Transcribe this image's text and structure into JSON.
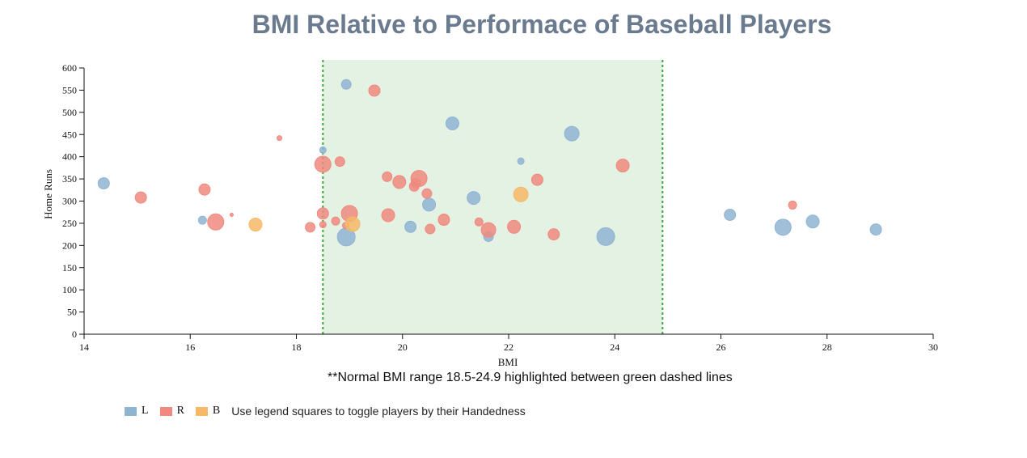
{
  "title": "BMI Relative to Performace of Baseball Players",
  "note": "**Normal BMI range 18.5-24.9 highlighted between green dashed lines",
  "legend": {
    "items": [
      {
        "label": "L",
        "color": "#8fb4d2"
      },
      {
        "label": "R",
        "color": "#f0897f"
      },
      {
        "label": "B",
        "color": "#f6b967"
      }
    ],
    "hint": "Use legend squares to toggle players by their Handedness"
  },
  "chart_data": {
    "type": "scatter",
    "xlabel": "BMI",
    "ylabel": "Home Runs",
    "xlim": [
      14,
      30
    ],
    "ylim": [
      0,
      600
    ],
    "x_ticks": [
      "14",
      "16",
      "18",
      "20",
      "22",
      "24",
      "26",
      "28",
      "30"
    ],
    "y_ticks": [
      "0",
      "50",
      "100",
      "150",
      "200",
      "250",
      "300",
      "350",
      "400",
      "450",
      "500",
      "550",
      "600"
    ],
    "highlight_range": [
      18.5,
      24.9
    ],
    "highlight_color": "#e4f2e4",
    "highlight_line_color": "#3aa63a",
    "colors": {
      "L": "#8fb4d2",
      "R": "#f0897f",
      "B": "#f6b967"
    },
    "series": [
      {
        "name": "L",
        "points": [
          {
            "x": 14.37,
            "y": 340,
            "size": 7
          },
          {
            "x": 16.23,
            "y": 257,
            "size": 5
          },
          {
            "x": 18.5,
            "y": 415,
            "size": 4
          },
          {
            "x": 18.94,
            "y": 563,
            "size": 6
          },
          {
            "x": 18.94,
            "y": 219,
            "size": 11
          },
          {
            "x": 20.15,
            "y": 242,
            "size": 7
          },
          {
            "x": 20.5,
            "y": 292,
            "size": 8
          },
          {
            "x": 20.94,
            "y": 475,
            "size": 8
          },
          {
            "x": 21.34,
            "y": 307,
            "size": 8
          },
          {
            "x": 21.62,
            "y": 220,
            "size": 6
          },
          {
            "x": 22.23,
            "y": 390,
            "size": 4
          },
          {
            "x": 23.19,
            "y": 452,
            "size": 9
          },
          {
            "x": 23.83,
            "y": 220,
            "size": 11
          },
          {
            "x": 26.17,
            "y": 269,
            "size": 7
          },
          {
            "x": 27.17,
            "y": 241,
            "size": 10
          },
          {
            "x": 27.73,
            "y": 254,
            "size": 8
          },
          {
            "x": 28.92,
            "y": 236,
            "size": 7
          }
        ]
      },
      {
        "name": "R",
        "points": [
          {
            "x": 15.07,
            "y": 308,
            "size": 7
          },
          {
            "x": 16.27,
            "y": 326,
            "size": 7
          },
          {
            "x": 16.48,
            "y": 253,
            "size": 10
          },
          {
            "x": 16.78,
            "y": 269,
            "size": 2
          },
          {
            "x": 17.68,
            "y": 442,
            "size": 3
          },
          {
            "x": 18.26,
            "y": 241,
            "size": 6
          },
          {
            "x": 18.5,
            "y": 383,
            "size": 10
          },
          {
            "x": 18.5,
            "y": 272,
            "size": 7
          },
          {
            "x": 18.5,
            "y": 247,
            "size": 4
          },
          {
            "x": 18.74,
            "y": 255,
            "size": 5
          },
          {
            "x": 18.82,
            "y": 389,
            "size": 6
          },
          {
            "x": 18.93,
            "y": 245,
            "size": 4
          },
          {
            "x": 19.0,
            "y": 272,
            "size": 10
          },
          {
            "x": 19.47,
            "y": 549,
            "size": 7
          },
          {
            "x": 19.71,
            "y": 355,
            "size": 6
          },
          {
            "x": 19.73,
            "y": 268,
            "size": 8
          },
          {
            "x": 19.94,
            "y": 343,
            "size": 8
          },
          {
            "x": 20.22,
            "y": 333,
            "size": 6
          },
          {
            "x": 20.25,
            "y": 340,
            "size": 6
          },
          {
            "x": 20.31,
            "y": 351,
            "size": 10
          },
          {
            "x": 20.46,
            "y": 317,
            "size": 6
          },
          {
            "x": 20.52,
            "y": 237,
            "size": 6
          },
          {
            "x": 20.78,
            "y": 258,
            "size": 7
          },
          {
            "x": 21.44,
            "y": 253,
            "size": 5
          },
          {
            "x": 21.62,
            "y": 235,
            "size": 9
          },
          {
            "x": 22.1,
            "y": 242,
            "size": 8
          },
          {
            "x": 22.54,
            "y": 348,
            "size": 7
          },
          {
            "x": 22.85,
            "y": 225,
            "size": 7
          },
          {
            "x": 24.15,
            "y": 380,
            "size": 8
          },
          {
            "x": 27.35,
            "y": 291,
            "size": 5
          }
        ]
      },
      {
        "name": "B",
        "points": [
          {
            "x": 17.23,
            "y": 247,
            "size": 8
          },
          {
            "x": 19.06,
            "y": 248,
            "size": 9
          },
          {
            "x": 22.23,
            "y": 315,
            "size": 9
          }
        ]
      }
    ]
  }
}
